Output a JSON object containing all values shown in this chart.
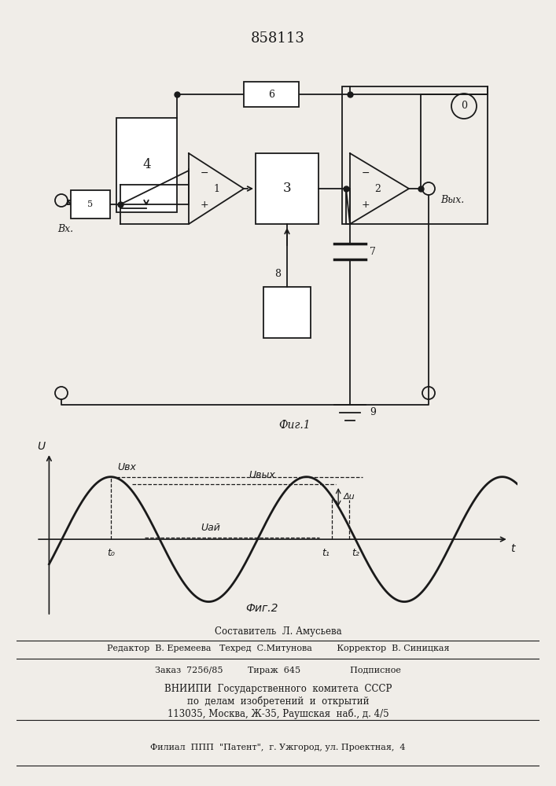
{
  "title": "858113",
  "bg_color": "#f0ede8",
  "line_color": "#1a1a1a",
  "footer_lines": [
    "Составитель  Л. Амусьева",
    "Редактор  В. Еремеева   Техред  С.Митунова         Корректор  В. Синицкая",
    "Заказ  7256/85         Тираж  645                  Подписное",
    "ВНИИПИ  Государственного  комитета  СССР",
    "по  делам  изобретений  и  открытий",
    "113035, Москва, Ж-35, Раушская  наб., д. 4/5",
    "Филиал  ППП  \"Патент\",  г. Ужгород, ул. Проектная,  4"
  ]
}
